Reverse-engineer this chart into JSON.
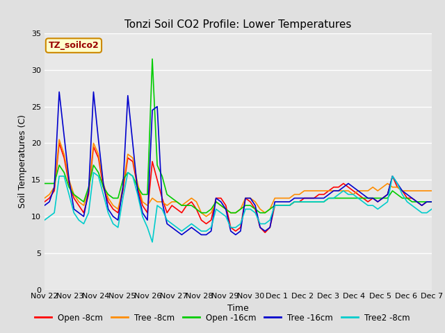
{
  "title": "Tonzi Soil CO2 Profile: Lower Temperatures",
  "xlabel": "Time",
  "ylabel": "Soil Temperatures (C)",
  "annotation": "TZ_soilco2",
  "ylim": [
    0,
    35
  ],
  "yticks": [
    0,
    5,
    10,
    15,
    20,
    25,
    30,
    35
  ],
  "x_labels": [
    "Nov 22",
    "Nov 23",
    "Nov 24",
    "Nov 25",
    "Nov 26",
    "Nov 27",
    "Nov 28",
    "Nov 29",
    "Nov 30",
    "Dec 1",
    "Dec 2",
    "Dec 3",
    "Dec 4",
    "Dec 5",
    "Dec 6",
    "Dec 7"
  ],
  "series": {
    "Open -8cm": {
      "color": "#ff0000",
      "values": [
        12.0,
        12.5,
        13.5,
        20.0,
        18.0,
        14.5,
        12.5,
        11.5,
        10.5,
        13.0,
        19.5,
        18.0,
        14.0,
        12.0,
        11.0,
        10.5,
        13.5,
        18.0,
        17.5,
        14.0,
        11.5,
        10.5,
        17.5,
        15.0,
        12.5,
        10.5,
        11.5,
        11.0,
        10.5,
        11.5,
        12.0,
        11.0,
        9.5,
        9.0,
        9.5,
        12.5,
        12.5,
        11.5,
        8.5,
        8.0,
        8.5,
        12.5,
        12.0,
        11.0,
        8.5,
        7.8,
        8.5,
        11.5,
        11.5,
        11.5,
        11.5,
        12.0,
        12.0,
        12.5,
        12.5,
        12.5,
        13.0,
        13.0,
        13.5,
        14.0,
        14.0,
        14.5,
        14.0,
        13.5,
        13.0,
        12.5,
        12.0,
        12.5,
        12.0,
        12.5,
        13.0,
        15.5,
        14.0,
        13.5,
        12.5,
        12.5,
        12.0,
        11.5,
        12.0,
        12.0
      ]
    },
    "Tree -8cm": {
      "color": "#ff8c00",
      "values": [
        12.5,
        13.0,
        14.0,
        20.5,
        18.5,
        15.0,
        13.0,
        12.0,
        11.5,
        13.5,
        20.0,
        18.5,
        14.5,
        12.5,
        11.5,
        11.0,
        14.0,
        18.5,
        18.0,
        14.5,
        12.0,
        11.5,
        12.5,
        12.0,
        12.0,
        11.5,
        12.0,
        12.0,
        11.5,
        12.0,
        12.5,
        12.0,
        10.5,
        10.0,
        10.5,
        12.0,
        11.5,
        11.0,
        10.5,
        10.5,
        11.0,
        12.5,
        12.5,
        12.0,
        11.0,
        10.5,
        11.0,
        12.5,
        12.5,
        12.5,
        12.5,
        13.0,
        13.0,
        13.5,
        13.5,
        13.5,
        13.5,
        13.5,
        13.5,
        13.5,
        13.5,
        13.5,
        13.5,
        13.0,
        13.5,
        13.5,
        13.5,
        14.0,
        13.5,
        14.0,
        14.5,
        14.0,
        14.0,
        13.5,
        13.5,
        13.5,
        13.5,
        13.5,
        13.5,
        13.5
      ]
    },
    "Open -16cm": {
      "color": "#00cc00",
      "values": [
        14.5,
        14.5,
        14.5,
        17.0,
        16.0,
        14.0,
        13.0,
        12.5,
        12.0,
        14.0,
        17.0,
        16.0,
        14.0,
        13.0,
        12.5,
        12.5,
        15.0,
        16.0,
        15.5,
        14.0,
        13.0,
        13.0,
        31.5,
        17.0,
        15.5,
        13.0,
        12.5,
        12.0,
        11.5,
        11.5,
        11.5,
        11.0,
        10.5,
        10.5,
        11.0,
        12.0,
        11.5,
        11.0,
        10.5,
        10.5,
        11.0,
        11.5,
        11.5,
        11.0,
        10.5,
        10.5,
        11.0,
        11.5,
        11.5,
        11.5,
        11.5,
        12.0,
        12.0,
        12.0,
        12.0,
        12.0,
        12.0,
        12.0,
        12.5,
        12.5,
        12.5,
        12.5,
        12.5,
        12.5,
        12.5,
        12.5,
        12.5,
        12.5,
        12.5,
        12.5,
        12.5,
        13.5,
        13.0,
        12.5,
        12.5,
        12.0,
        12.0,
        12.0,
        12.0,
        12.0
      ]
    },
    "Tree -16cm": {
      "color": "#0000cc",
      "values": [
        11.5,
        12.0,
        14.0,
        27.0,
        21.0,
        15.0,
        11.0,
        10.5,
        10.0,
        13.5,
        27.0,
        20.5,
        14.5,
        11.0,
        10.0,
        9.5,
        14.0,
        26.5,
        20.0,
        13.5,
        10.5,
        9.5,
        24.5,
        25.0,
        12.0,
        9.0,
        8.5,
        8.0,
        7.5,
        8.0,
        8.5,
        8.0,
        7.5,
        7.5,
        8.0,
        12.5,
        12.0,
        11.0,
        8.0,
        7.5,
        8.0,
        12.5,
        12.5,
        11.5,
        8.5,
        8.0,
        8.5,
        12.0,
        12.0,
        12.0,
        12.0,
        12.5,
        12.5,
        12.5,
        12.5,
        12.5,
        12.5,
        12.5,
        13.0,
        13.5,
        13.5,
        14.0,
        14.5,
        14.0,
        13.5,
        13.0,
        12.5,
        12.5,
        12.0,
        12.5,
        13.0,
        15.5,
        14.5,
        13.5,
        13.0,
        12.5,
        12.0,
        11.5,
        12.0,
        12.0
      ]
    },
    "Tree2 -8cm": {
      "color": "#00cccc",
      "values": [
        9.5,
        10.0,
        10.5,
        15.5,
        15.5,
        13.0,
        10.5,
        9.5,
        9.0,
        10.5,
        16.0,
        15.5,
        13.0,
        10.5,
        9.0,
        8.5,
        12.5,
        16.0,
        15.5,
        13.0,
        10.0,
        8.5,
        6.5,
        11.5,
        11.0,
        9.5,
        9.0,
        8.5,
        8.0,
        8.5,
        9.0,
        8.5,
        8.0,
        8.0,
        8.5,
        11.0,
        10.5,
        10.0,
        8.5,
        8.5,
        9.0,
        11.0,
        11.0,
        10.5,
        9.0,
        9.0,
        9.5,
        11.5,
        11.5,
        11.5,
        11.5,
        12.0,
        12.0,
        12.0,
        12.0,
        12.0,
        12.0,
        12.0,
        12.5,
        12.5,
        13.0,
        13.5,
        13.0,
        13.0,
        12.5,
        12.0,
        11.5,
        11.5,
        11.0,
        11.5,
        12.0,
        15.5,
        14.5,
        13.0,
        12.0,
        11.5,
        11.0,
        10.5,
        10.5,
        11.0
      ]
    }
  },
  "bg_color": "#e0e0e0",
  "plot_bg_color": "#e8e8e8",
  "grid_color": "#ffffff",
  "annotation_bg": "#ffffcc",
  "annotation_border": "#cc8800",
  "annotation_text_color": "#990000",
  "title_fontsize": 11,
  "axis_label_fontsize": 9,
  "tick_fontsize": 8,
  "legend_fontsize": 8.5
}
